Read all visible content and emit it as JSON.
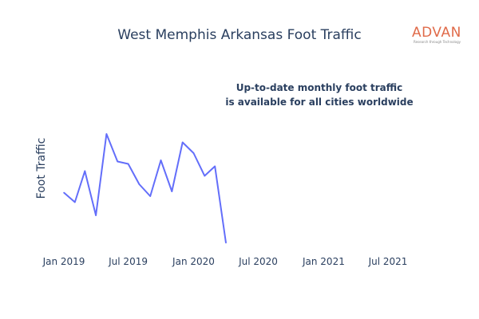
{
  "header": {
    "title": "West Memphis Arkansas Foot Traffic"
  },
  "logo": {
    "name": "ADVAN",
    "tagline": "Research through Technology",
    "color": "#e06b4a"
  },
  "annotation": {
    "line1": "Up-to-date monthly foot traffic",
    "line2": "is available for all cities worldwide"
  },
  "colors": {
    "line": "#636efa",
    "text": "#2a3f5f"
  },
  "chart_data": {
    "type": "line",
    "title": "West Memphis Arkansas Foot Traffic",
    "xlabel": "",
    "ylabel": "Foot Traffic",
    "x_tick_labels": [
      "Jan 2019",
      "Jul 2019",
      "Jan 2020",
      "Jul 2020",
      "Jan 2021",
      "Jul 2021"
    ],
    "x_tick_dates": [
      "2019-01-01",
      "2019-07-01",
      "2020-01-01",
      "2020-07-01",
      "2021-01-01",
      "2021-07-01"
    ],
    "y_tick_labels_visible": false,
    "ylim": [
      0,
      1
    ],
    "grid": false,
    "series": [
      {
        "x": [
          "2019-01-01",
          "2019-02-01",
          "2019-03-01",
          "2019-04-01",
          "2019-05-01",
          "2019-06-01",
          "2019-07-01",
          "2019-08-01",
          "2019-09-01",
          "2019-10-01",
          "2019-11-01",
          "2019-12-01",
          "2020-01-01",
          "2020-02-01",
          "2020-03-01",
          "2020-04-01"
        ],
        "values": [
          0.47,
          0.39,
          0.65,
          0.28,
          0.96,
          0.73,
          0.71,
          0.54,
          0.44,
          0.74,
          0.48,
          0.89,
          0.8,
          0.61,
          0.69,
          0.05
        ]
      }
    ]
  }
}
